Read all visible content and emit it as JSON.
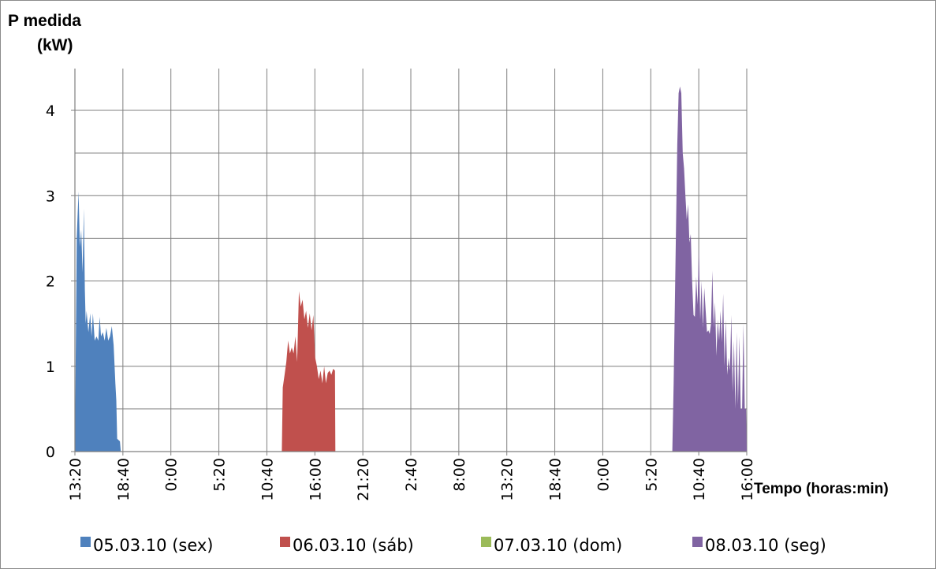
{
  "chart_data": {
    "type": "area",
    "ylabel_lines": [
      "P medida",
      "(kW)"
    ],
    "xlabel": "Tempo (horas:min)",
    "ylim": [
      0,
      4.4
    ],
    "yticks": [
      0,
      1,
      2,
      3,
      4
    ],
    "xticks": [
      "13:20",
      "18:40",
      "0:00",
      "5:20",
      "10:40",
      "16:00",
      "21:20",
      "2:40",
      "8:00",
      "13:20",
      "18:40",
      "0:00",
      "5:20",
      "10:40",
      "16:00"
    ],
    "grid": true,
    "legend_position": "bottom",
    "x_domain": [
      0,
      74.67
    ],
    "series": [
      {
        "name": "05.03.10 (sex)",
        "color": "#4f81bd",
        "points": [
          [
            0,
            0
          ],
          [
            0.2,
            2.5
          ],
          [
            0.4,
            3.05
          ],
          [
            0.55,
            2.4
          ],
          [
            0.7,
            2.6
          ],
          [
            0.85,
            2.1
          ],
          [
            1.0,
            2.85
          ],
          [
            1.1,
            1.9
          ],
          [
            1.2,
            1.5
          ],
          [
            1.3,
            1.65
          ],
          [
            1.5,
            1.4
          ],
          [
            1.7,
            1.62
          ],
          [
            1.85,
            1.35
          ],
          [
            2.0,
            1.62
          ],
          [
            2.2,
            1.3
          ],
          [
            2.4,
            1.35
          ],
          [
            2.6,
            1.3
          ],
          [
            2.75,
            1.58
          ],
          [
            2.9,
            1.35
          ],
          [
            3.1,
            1.4
          ],
          [
            3.3,
            1.3
          ],
          [
            3.5,
            1.45
          ],
          [
            3.7,
            1.3
          ],
          [
            3.9,
            1.35
          ],
          [
            4.1,
            1.47
          ],
          [
            4.3,
            1.25
          ],
          [
            4.5,
            0.8
          ],
          [
            4.6,
            0.6
          ],
          [
            4.7,
            0.15
          ],
          [
            5.0,
            0.12
          ],
          [
            5.1,
            0
          ]
        ]
      },
      {
        "name": "06.03.10 (sáb)",
        "color": "#c0504d",
        "points": [
          [
            23.0,
            0
          ],
          [
            23.1,
            0.75
          ],
          [
            23.3,
            0.9
          ],
          [
            23.5,
            1.05
          ],
          [
            23.7,
            1.3
          ],
          [
            23.9,
            1.15
          ],
          [
            24.1,
            1.22
          ],
          [
            24.3,
            1.15
          ],
          [
            24.5,
            1.35
          ],
          [
            24.7,
            1.05
          ],
          [
            24.9,
            1.88
          ],
          [
            25.1,
            1.7
          ],
          [
            25.3,
            1.78
          ],
          [
            25.5,
            1.55
          ],
          [
            25.7,
            1.65
          ],
          [
            25.9,
            1.45
          ],
          [
            26.1,
            1.62
          ],
          [
            26.3,
            1.42
          ],
          [
            26.5,
            1.6
          ],
          [
            26.7,
            1.1
          ],
          [
            26.9,
            1.0
          ],
          [
            27.1,
            0.85
          ],
          [
            27.3,
            0.95
          ],
          [
            27.5,
            0.8
          ],
          [
            27.7,
            1.0
          ],
          [
            27.9,
            0.8
          ],
          [
            28.1,
            0.92
          ],
          [
            28.3,
            0.95
          ],
          [
            28.5,
            0.9
          ],
          [
            28.7,
            0.97
          ],
          [
            28.9,
            0.95
          ],
          [
            28.95,
            0
          ]
        ]
      },
      {
        "name": "07.03.10 (dom)",
        "color": "#9bbb59",
        "points": []
      },
      {
        "name": "08.03.10 (seg)",
        "color": "#8064a2",
        "points": [
          [
            66.4,
            0
          ],
          [
            66.55,
            0.8
          ],
          [
            66.75,
            2.2
          ],
          [
            66.95,
            3.6
          ],
          [
            67.1,
            4.2
          ],
          [
            67.25,
            4.28
          ],
          [
            67.4,
            4.2
          ],
          [
            67.55,
            3.5
          ],
          [
            67.7,
            3.32
          ],
          [
            67.85,
            3.0
          ],
          [
            68.0,
            2.72
          ],
          [
            68.15,
            2.9
          ],
          [
            68.3,
            2.45
          ],
          [
            68.45,
            2.55
          ],
          [
            68.6,
            2.0
          ],
          [
            68.75,
            1.6
          ],
          [
            68.9,
            1.58
          ],
          [
            69.05,
            2.05
          ],
          [
            69.2,
            1.72
          ],
          [
            69.35,
            2.38
          ],
          [
            69.5,
            1.55
          ],
          [
            69.65,
            2.0
          ],
          [
            69.8,
            1.45
          ],
          [
            69.95,
            1.92
          ],
          [
            70.1,
            1.65
          ],
          [
            70.25,
            1.4
          ],
          [
            70.4,
            1.42
          ],
          [
            70.55,
            1.38
          ],
          [
            70.7,
            1.5
          ],
          [
            70.85,
            2.12
          ],
          [
            71.0,
            1.45
          ],
          [
            71.15,
            1.75
          ],
          [
            71.3,
            1.12
          ],
          [
            71.45,
            1.55
          ],
          [
            71.6,
            1.3
          ],
          [
            71.75,
            1.65
          ],
          [
            71.9,
            1.28
          ],
          [
            72.05,
            1.85
          ],
          [
            72.2,
            1.0
          ],
          [
            72.35,
            1.55
          ],
          [
            72.5,
            0.9
          ],
          [
            72.65,
            1.1
          ],
          [
            72.8,
            0.95
          ],
          [
            72.95,
            1.6
          ],
          [
            73.1,
            0.7
          ],
          [
            73.25,
            1.3
          ],
          [
            73.4,
            0.5
          ],
          [
            73.55,
            1.4
          ],
          [
            73.7,
            0.55
          ],
          [
            73.85,
            1.35
          ],
          [
            74.0,
            0.5
          ],
          [
            74.15,
            0.5
          ],
          [
            74.3,
            1.5
          ],
          [
            74.45,
            0.5
          ],
          [
            74.6,
            0.5
          ],
          [
            74.67,
            0
          ]
        ]
      }
    ]
  }
}
